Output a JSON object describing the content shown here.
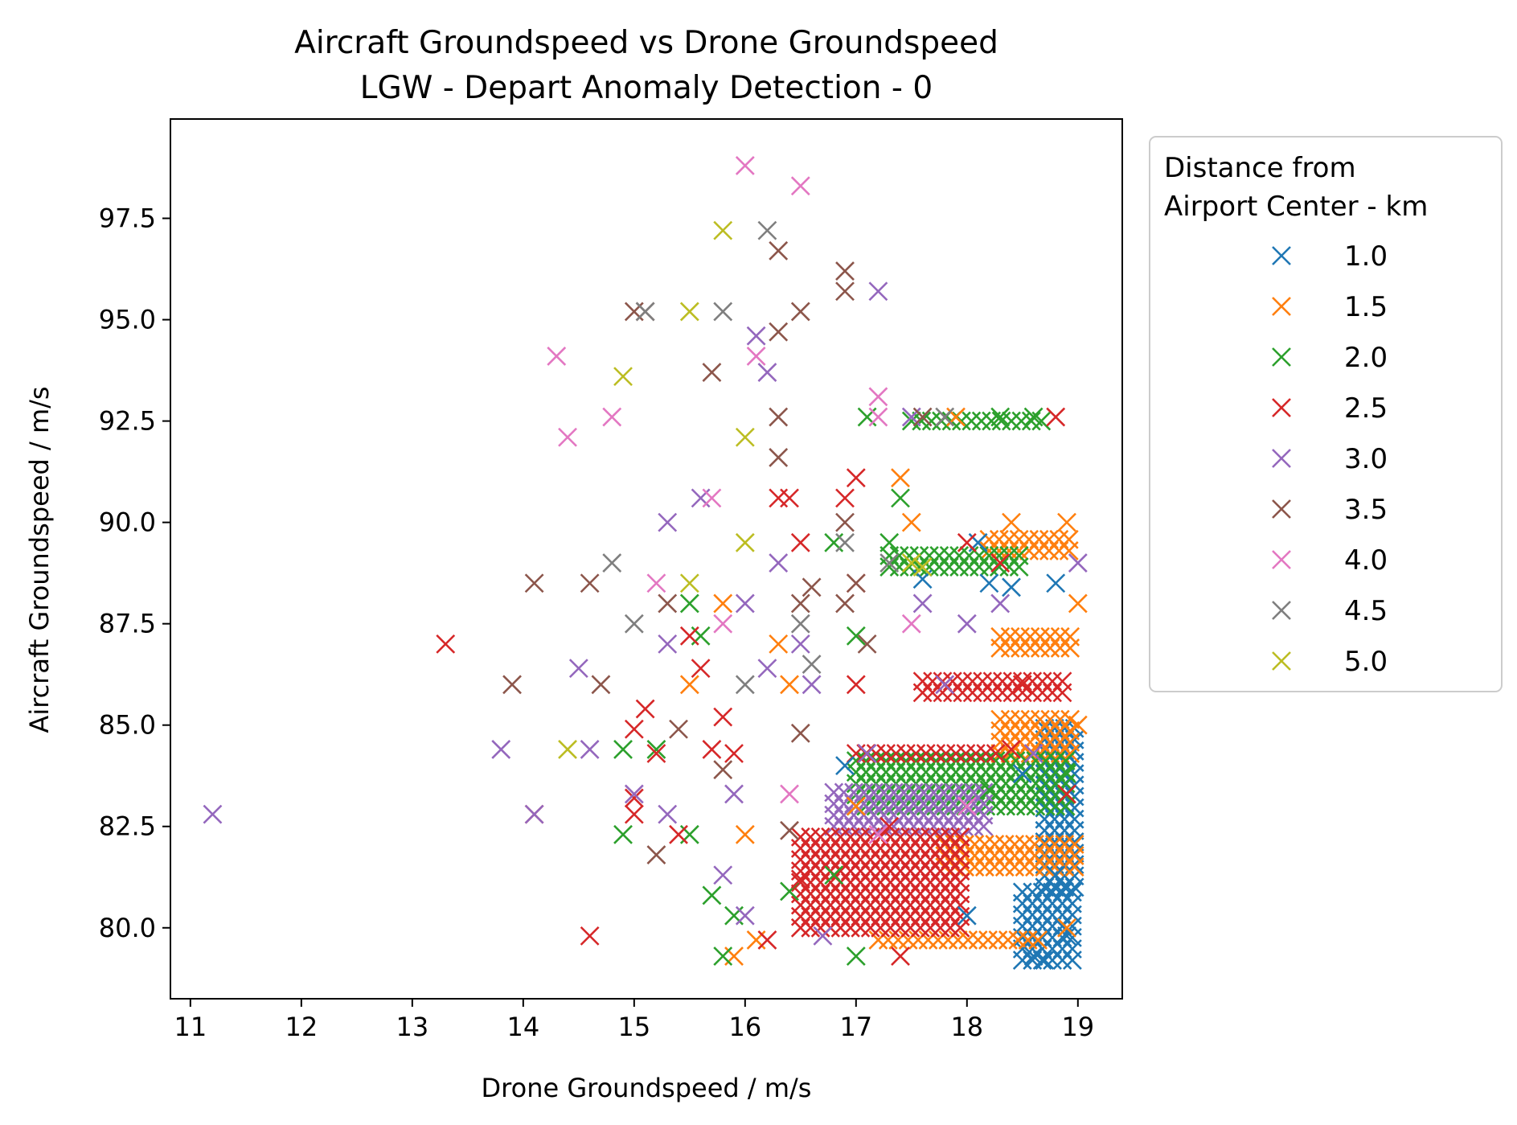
{
  "chart_data": {
    "type": "scatter",
    "title": "Aircraft Groundspeed vs Drone Groundspeed",
    "subtitle": "LGW - Depart Anomaly Detection - 0",
    "xlabel": "Drone Groundspeed / m/s",
    "ylabel": "Aircraft Groundspeed / m/s",
    "xlim": [
      10.82,
      19.4
    ],
    "ylim": [
      78.25,
      99.95
    ],
    "xticks": [
      "11",
      "12",
      "13",
      "14",
      "15",
      "16",
      "17",
      "18",
      "19"
    ],
    "yticks": [
      "80.0",
      "82.5",
      "85.0",
      "87.5",
      "90.0",
      "92.5",
      "95.0",
      "97.5"
    ],
    "grid": false,
    "marker": "x",
    "legend": {
      "title_lines": [
        "Distance from",
        "Airport Center - km"
      ],
      "placement": "outside-right-top"
    },
    "series": [
      {
        "name": "1.0",
        "color": "#1f77b4",
        "points": [
          [
            18.2,
            88.5
          ],
          [
            18.4,
            88.4
          ],
          [
            17.6,
            88.6
          ],
          [
            18.1,
            89.5
          ],
          [
            18.8,
            88.5
          ],
          [
            18.0,
            80.3
          ],
          [
            18.6,
            79.3
          ],
          [
            18.7,
            79.2
          ],
          [
            18.9,
            79.8
          ],
          [
            16.9,
            84.0
          ],
          [
            18.5,
            83.8
          ],
          [
            18.8,
            81.3
          ]
        ]
      },
      {
        "name": "1.5",
        "color": "#ff7f0e",
        "points": [
          [
            17.4,
            91.1
          ],
          [
            17.9,
            92.6
          ],
          [
            15.8,
            88.0
          ],
          [
            16.3,
            87.0
          ],
          [
            16.4,
            86.0
          ],
          [
            15.5,
            86.0
          ],
          [
            16.0,
            82.3
          ],
          [
            16.1,
            79.7
          ],
          [
            15.9,
            79.3
          ],
          [
            17.5,
            90.0
          ],
          [
            18.4,
            90.0
          ],
          [
            18.9,
            90.0
          ],
          [
            19.0,
            88.0
          ],
          [
            19.0,
            85.0
          ],
          [
            17.0,
            83.0
          ],
          [
            18.9,
            80.0
          ]
        ]
      },
      {
        "name": "2.0",
        "color": "#2ca02c",
        "points": [
          [
            17.4,
            90.6
          ],
          [
            17.1,
            92.6
          ],
          [
            18.3,
            92.6
          ],
          [
            18.6,
            92.6
          ],
          [
            15.5,
            88.0
          ],
          [
            15.6,
            87.2
          ],
          [
            14.9,
            84.4
          ],
          [
            15.2,
            84.4
          ],
          [
            14.9,
            82.3
          ],
          [
            15.5,
            82.3
          ],
          [
            15.7,
            80.8
          ],
          [
            15.9,
            80.3
          ],
          [
            15.8,
            79.3
          ],
          [
            16.4,
            80.9
          ],
          [
            16.8,
            81.3
          ],
          [
            17.0,
            79.3
          ],
          [
            17.0,
            87.2
          ],
          [
            16.8,
            89.5
          ],
          [
            17.3,
            89.5
          ],
          [
            18.9,
            83.8
          ],
          [
            18.2,
            83.4
          ]
        ]
      },
      {
        "name": "2.5",
        "color": "#d62728",
        "points": [
          [
            13.3,
            87.0
          ],
          [
            14.1,
            82.8
          ],
          [
            14.6,
            79.8
          ],
          [
            15.0,
            84.9
          ],
          [
            15.1,
            85.4
          ],
          [
            15.0,
            83.2
          ],
          [
            15.2,
            84.3
          ],
          [
            15.0,
            82.8
          ],
          [
            15.7,
            84.4
          ],
          [
            15.6,
            86.4
          ],
          [
            15.8,
            85.2
          ],
          [
            15.4,
            82.3
          ],
          [
            15.5,
            87.2
          ],
          [
            16.2,
            79.7
          ],
          [
            16.5,
            81.2
          ],
          [
            16.3,
            90.6
          ],
          [
            16.4,
            90.6
          ],
          [
            17.0,
            91.1
          ],
          [
            16.9,
            90.6
          ],
          [
            17.0,
            86.0
          ],
          [
            17.0,
            88.5
          ],
          [
            16.5,
            89.5
          ],
          [
            15.9,
            84.3
          ],
          [
            18.0,
            89.5
          ],
          [
            18.3,
            89.0
          ],
          [
            18.5,
            86.0
          ],
          [
            18.9,
            83.3
          ],
          [
            18.4,
            84.4
          ],
          [
            17.4,
            79.3
          ],
          [
            17.3,
            82.5
          ],
          [
            18.8,
            92.6
          ]
        ]
      },
      {
        "name": "3.0",
        "color": "#9467bd",
        "points": [
          [
            11.2,
            82.8
          ],
          [
            13.8,
            84.4
          ],
          [
            14.1,
            82.8
          ],
          [
            14.5,
            86.4
          ],
          [
            14.6,
            84.4
          ],
          [
            15.0,
            83.3
          ],
          [
            15.3,
            82.8
          ],
          [
            15.3,
            87.0
          ],
          [
            15.3,
            90.0
          ],
          [
            15.6,
            90.6
          ],
          [
            16.1,
            94.6
          ],
          [
            16.2,
            93.7
          ],
          [
            17.2,
            95.7
          ],
          [
            16.3,
            89.0
          ],
          [
            16.0,
            88.0
          ],
          [
            15.9,
            83.3
          ],
          [
            15.8,
            81.3
          ],
          [
            16.5,
            87.0
          ],
          [
            16.6,
            86.0
          ],
          [
            16.2,
            86.4
          ],
          [
            16.7,
            79.8
          ],
          [
            17.1,
            84.3
          ],
          [
            17.5,
            92.6
          ],
          [
            17.6,
            88.0
          ],
          [
            18.0,
            87.5
          ],
          [
            18.6,
            84.3
          ],
          [
            19.0,
            89.0
          ],
          [
            18.3,
            88.0
          ],
          [
            17.8,
            86.0
          ],
          [
            16.0,
            80.3
          ]
        ]
      },
      {
        "name": "3.5",
        "color": "#8c564b",
        "points": [
          [
            14.1,
            88.5
          ],
          [
            14.6,
            88.5
          ],
          [
            13.9,
            86.0
          ],
          [
            14.7,
            86.0
          ],
          [
            15.1,
            95.2
          ],
          [
            15.0,
            95.2
          ],
          [
            15.7,
            93.7
          ],
          [
            16.3,
            94.7
          ],
          [
            16.5,
            95.2
          ],
          [
            16.3,
            96.7
          ],
          [
            16.9,
            95.7
          ],
          [
            16.9,
            96.2
          ],
          [
            16.3,
            92.6
          ],
          [
            16.3,
            91.6
          ],
          [
            15.3,
            88.0
          ],
          [
            15.8,
            83.9
          ],
          [
            15.4,
            84.9
          ],
          [
            15.2,
            81.8
          ],
          [
            16.4,
            82.4
          ],
          [
            16.5,
            88.0
          ],
          [
            16.6,
            88.4
          ],
          [
            16.9,
            88.0
          ],
          [
            17.0,
            88.5
          ],
          [
            16.9,
            90.0
          ],
          [
            17.6,
            92.6
          ],
          [
            16.5,
            84.8
          ],
          [
            17.1,
            87.0
          ]
        ]
      },
      {
        "name": "4.0",
        "color": "#e377c2",
        "points": [
          [
            14.3,
            94.1
          ],
          [
            14.4,
            92.1
          ],
          [
            14.8,
            92.6
          ],
          [
            15.2,
            88.5
          ],
          [
            15.7,
            90.6
          ],
          [
            15.8,
            87.5
          ],
          [
            16.0,
            98.8
          ],
          [
            16.5,
            98.3
          ],
          [
            16.1,
            94.1
          ],
          [
            17.2,
            93.1
          ],
          [
            17.2,
            92.6
          ],
          [
            17.5,
            87.5
          ],
          [
            18.0,
            83.0
          ],
          [
            16.4,
            83.3
          ],
          [
            17.2,
            82.3
          ]
        ]
      },
      {
        "name": "4.5",
        "color": "#7f7f7f",
        "points": [
          [
            14.8,
            89.0
          ],
          [
            15.0,
            87.5
          ],
          [
            15.1,
            95.2
          ],
          [
            15.8,
            95.2
          ],
          [
            16.2,
            97.2
          ],
          [
            16.9,
            89.5
          ],
          [
            17.3,
            89.0
          ],
          [
            16.6,
            86.5
          ],
          [
            16.0,
            86.0
          ],
          [
            17.8,
            92.6
          ],
          [
            16.5,
            87.5
          ]
        ]
      },
      {
        "name": "5.0",
        "color": "#bcbd22",
        "points": [
          [
            14.4,
            84.4
          ],
          [
            14.9,
            93.6
          ],
          [
            15.5,
            95.2
          ],
          [
            15.5,
            88.5
          ],
          [
            15.8,
            97.2
          ],
          [
            16.0,
            89.5
          ],
          [
            16.0,
            92.1
          ],
          [
            17.5,
            89.0
          ],
          [
            17.6,
            88.9
          ]
        ]
      }
    ],
    "dense_clusters": [
      {
        "series": "1.0",
        "x": [
          18.5,
          19.0
        ],
        "y": [
          79.2,
          81.0
        ]
      },
      {
        "series": "1.0",
        "x": [
          18.7,
          19.0
        ],
        "y": [
          81.0,
          85.0
        ]
      },
      {
        "series": "1.5",
        "x": [
          17.2,
          18.7
        ],
        "y": [
          79.7,
          79.9
        ]
      },
      {
        "series": "1.5",
        "x": [
          17.8,
          19.0
        ],
        "y": [
          81.5,
          82.2
        ]
      },
      {
        "series": "1.5",
        "x": [
          18.3,
          19.0
        ],
        "y": [
          84.3,
          85.3
        ]
      },
      {
        "series": "1.5",
        "x": [
          18.3,
          19.0
        ],
        "y": [
          86.9,
          87.2
        ]
      },
      {
        "series": "1.5",
        "x": [
          18.2,
          19.0
        ],
        "y": [
          89.3,
          89.7
        ]
      },
      {
        "series": "2.0",
        "x": [
          17.0,
          18.9
        ],
        "y": [
          83.0,
          84.2
        ]
      },
      {
        "series": "2.0",
        "x": [
          17.3,
          18.5
        ],
        "y": [
          88.9,
          89.2
        ]
      },
      {
        "series": "2.5",
        "x": [
          17.6,
          18.9
        ],
        "y": [
          85.8,
          86.1
        ]
      },
      {
        "series": "2.5",
        "x": [
          17.0,
          18.3
        ],
        "y": [
          84.3,
          84.5
        ]
      },
      {
        "series": "2.0",
        "x": [
          17.5,
          18.7
        ],
        "y": [
          92.5,
          92.7
        ]
      },
      {
        "series": "3.0",
        "x": [
          16.8,
          18.2
        ],
        "y": [
          82.5,
          83.5
        ]
      },
      {
        "series": "2.5",
        "x": [
          16.5,
          18.0
        ],
        "y": [
          80.0,
          82.5
        ]
      }
    ]
  }
}
